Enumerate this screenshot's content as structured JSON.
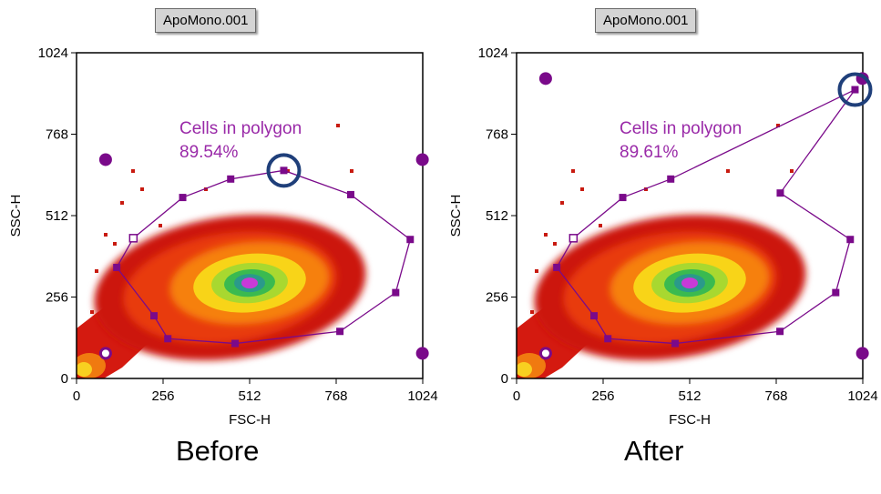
{
  "colors": {
    "gate": "#7a0a8a",
    "gate_text": "#9a2aa8",
    "highlight": "#1f3f7a"
  },
  "chart_data": [
    {
      "type": "scatter",
      "subtype": "density-dot-plot",
      "file_label": "ApoMono.001",
      "caption": "Before",
      "xlabel": "FSC-H",
      "ylabel": "SSC-H",
      "xlim": [
        0,
        1024
      ],
      "ylim": [
        0,
        1024
      ],
      "xticks": [
        "0",
        "256",
        "512",
        "768",
        "1024"
      ],
      "yticks": [
        "0",
        "256",
        "512",
        "768",
        "1024"
      ],
      "gate_label": "Cells in polygon",
      "gate_percent": "89.54%",
      "polygon": [
        [
          119,
          349
        ],
        [
          168,
          441
        ],
        [
          314,
          569
        ],
        [
          456,
          627
        ],
        [
          613,
          654
        ],
        [
          811,
          578
        ],
        [
          987,
          437
        ],
        [
          944,
          270
        ],
        [
          779,
          148
        ],
        [
          469,
          110
        ],
        [
          270,
          125
        ],
        [
          229,
          197
        ]
      ],
      "highlighted_vertex_index": 4,
      "calibration_dots": [
        [
          86,
          79
        ],
        [
          86,
          688
        ],
        [
          1023,
          688
        ],
        [
          1023,
          79
        ]
      ]
    },
    {
      "type": "scatter",
      "subtype": "density-dot-plot",
      "file_label": "ApoMono.001",
      "caption": "After",
      "xlabel": "FSC-H",
      "ylabel": "SSC-H",
      "xlim": [
        0,
        1024
      ],
      "ylim": [
        0,
        1024
      ],
      "xticks": [
        "0",
        "256",
        "512",
        "768",
        "1024"
      ],
      "yticks": [
        "0",
        "256",
        "512",
        "768",
        "1024"
      ],
      "gate_label": "Cells in polygon",
      "gate_percent": "89.61%",
      "polygon": [
        [
          119,
          349
        ],
        [
          168,
          441
        ],
        [
          314,
          569
        ],
        [
          456,
          627
        ],
        [
          1001,
          908
        ],
        [
          780,
          583
        ],
        [
          987,
          437
        ],
        [
          944,
          270
        ],
        [
          779,
          148
        ],
        [
          469,
          110
        ],
        [
          270,
          125
        ],
        [
          229,
          197
        ]
      ],
      "highlighted_vertex_index": 4,
      "calibration_dots": [
        [
          86,
          79
        ],
        [
          86,
          943
        ],
        [
          1023,
          943
        ],
        [
          1023,
          79
        ]
      ]
    }
  ]
}
